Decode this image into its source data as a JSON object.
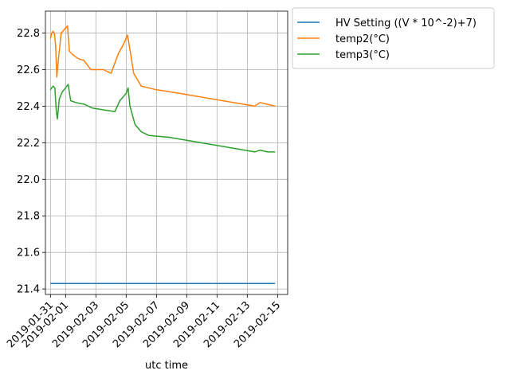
{
  "chart_data": {
    "type": "line",
    "title": "",
    "xlabel": "utc time",
    "ylabel": "",
    "grid": true,
    "legend_placement": "outside-top-right",
    "x_ticks": [
      "2019-01-31",
      "2019-02-01",
      "2019-02-03",
      "2019-02-05",
      "2019-02-07",
      "2019-02-09",
      "2019-02-11",
      "2019-02-13",
      "2019-02-15"
    ],
    "y_ticks": [
      "21.4",
      "21.6",
      "21.8",
      "22.0",
      "22.2",
      "22.4",
      "22.6",
      "22.8"
    ],
    "xlim": [
      "2019-01-30T16:00",
      "2019-02-15T16:00"
    ],
    "ylim": [
      21.37,
      22.92
    ],
    "series": [
      {
        "name": "HV Setting ((V * 10^-2)+7)",
        "color": "#1f77b4",
        "points": [
          [
            "2019-01-31T00:00",
            21.43
          ],
          [
            "2019-02-14T20:00",
            21.43
          ]
        ]
      },
      {
        "name": "temp2(°C)",
        "color": "#ff7f0e",
        "points": [
          [
            "2019-01-31T00:00",
            22.77
          ],
          [
            "2019-01-31T02:00",
            22.8
          ],
          [
            "2019-01-31T04:00",
            22.81
          ],
          [
            "2019-01-31T06:00",
            22.8
          ],
          [
            "2019-01-31T08:00",
            22.74
          ],
          [
            "2019-01-31T10:00",
            22.56
          ],
          [
            "2019-01-31T13:00",
            22.67
          ],
          [
            "2019-01-31T17:00",
            22.8
          ],
          [
            "2019-01-31T22:00",
            22.82
          ],
          [
            "2019-02-01T03:00",
            22.84
          ],
          [
            "2019-02-01T06:00",
            22.7
          ],
          [
            "2019-02-01T12:00",
            22.68
          ],
          [
            "2019-02-01T20:00",
            22.66
          ],
          [
            "2019-02-02T05:00",
            22.65
          ],
          [
            "2019-02-02T16:00",
            22.6
          ],
          [
            "2019-02-03T00:00",
            22.6
          ],
          [
            "2019-02-03T12:00",
            22.6
          ],
          [
            "2019-02-04T00:00",
            22.58
          ],
          [
            "2019-02-04T12:00",
            22.69
          ],
          [
            "2019-02-04T20:00",
            22.74
          ],
          [
            "2019-02-05T02:00",
            22.79
          ],
          [
            "2019-02-05T05:00",
            22.73
          ],
          [
            "2019-02-05T12:00",
            22.58
          ],
          [
            "2019-02-06T00:00",
            22.51
          ],
          [
            "2019-02-07T00:00",
            22.49
          ],
          [
            "2019-02-07T20:00",
            22.48
          ],
          [
            "2019-02-13T12:00",
            22.4
          ],
          [
            "2019-02-13T20:00",
            22.42
          ],
          [
            "2019-02-14T08:00",
            22.41
          ],
          [
            "2019-02-14T20:00",
            22.4
          ]
        ]
      },
      {
        "name": "temp3(°C)",
        "color": "#2ca02c",
        "points": [
          [
            "2019-01-31T00:00",
            22.49
          ],
          [
            "2019-01-31T04:00",
            22.51
          ],
          [
            "2019-01-31T07:00",
            22.5
          ],
          [
            "2019-01-31T09:00",
            22.38
          ],
          [
            "2019-01-31T11:00",
            22.33
          ],
          [
            "2019-01-31T14:00",
            22.44
          ],
          [
            "2019-01-31T19:00",
            22.48
          ],
          [
            "2019-02-01T00:00",
            22.5
          ],
          [
            "2019-02-01T04:00",
            22.52
          ],
          [
            "2019-02-01T08:00",
            22.43
          ],
          [
            "2019-02-01T16:00",
            22.42
          ],
          [
            "2019-02-02T06:00",
            22.41
          ],
          [
            "2019-02-02T18:00",
            22.39
          ],
          [
            "2019-02-03T12:00",
            22.38
          ],
          [
            "2019-02-04T06:00",
            22.37
          ],
          [
            "2019-02-04T14:00",
            22.43
          ],
          [
            "2019-02-05T00:00",
            22.47
          ],
          [
            "2019-02-05T03:00",
            22.5
          ],
          [
            "2019-02-05T06:00",
            22.4
          ],
          [
            "2019-02-05T14:00",
            22.3
          ],
          [
            "2019-02-06T00:00",
            22.26
          ],
          [
            "2019-02-06T12:00",
            22.24
          ],
          [
            "2019-02-07T20:00",
            22.23
          ],
          [
            "2019-02-13T12:00",
            22.15
          ],
          [
            "2019-02-13T20:00",
            22.16
          ],
          [
            "2019-02-14T08:00",
            22.15
          ],
          [
            "2019-02-14T20:00",
            22.15
          ]
        ]
      }
    ]
  }
}
